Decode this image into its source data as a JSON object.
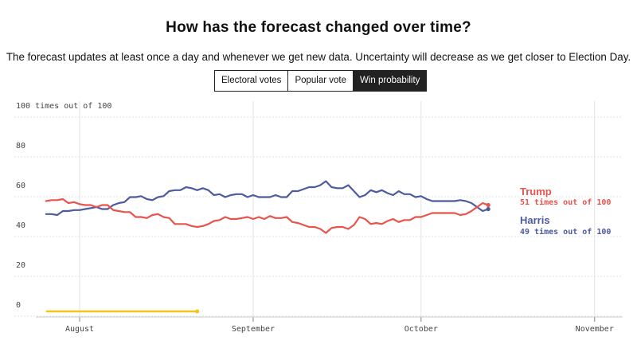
{
  "header": {
    "title": "How has the forecast changed over time?",
    "subtitle": "The forecast updates at least once a day and whenever we get new data. Uncertainty will decrease as we get closer to Election Day."
  },
  "tabs": [
    {
      "label": "Electoral votes",
      "active": false
    },
    {
      "label": "Popular vote",
      "active": false
    },
    {
      "label": "Win probability",
      "active": true
    }
  ],
  "colors": {
    "trump": "#e8534d",
    "harris": "#4d5a9e",
    "highlight": "#f5c518",
    "grid": "#e3e3e3",
    "axis_text": "#444444"
  },
  "chart_data": {
    "type": "line",
    "x_axis": {
      "ticks": [
        {
          "label": "August",
          "day": 0
        },
        {
          "label": "September",
          "day": 31
        },
        {
          "label": "October",
          "day": 61
        },
        {
          "label": "November",
          "day": 92
        }
      ]
    },
    "y_axis": {
      "ylim": [
        0,
        100
      ],
      "ticks": [
        {
          "value": 100,
          "label": "100 times out of 100"
        },
        {
          "value": 80,
          "label": "80"
        },
        {
          "value": 60,
          "label": "60"
        },
        {
          "value": 40,
          "label": "40"
        },
        {
          "value": 20,
          "label": "20"
        },
        {
          "value": 0,
          "label": "0"
        }
      ]
    },
    "grid": true,
    "series": [
      {
        "name": "Harris",
        "color_key": "harris",
        "end_label": "49 times out of 100",
        "start_day": -6,
        "values": [
          46.5,
          46.5,
          46,
          48,
          48,
          48.5,
          48.5,
          49,
          49.5,
          50,
          49,
          49,
          51,
          52,
          52.5,
          55,
          55,
          55.5,
          54,
          53.5,
          55,
          55.5,
          58,
          58.5,
          58.5,
          60,
          59.5,
          58.5,
          59.5,
          58.5,
          56,
          56.5,
          55,
          56,
          56.5,
          56.5,
          55,
          56,
          55,
          55,
          55,
          56,
          55,
          55,
          58,
          58,
          59,
          60,
          60,
          61,
          63,
          60,
          59.5,
          59.5,
          61,
          58,
          55,
          56,
          58.5,
          57.5,
          58.5,
          57,
          56,
          58,
          56.5,
          56.5,
          55,
          55.5,
          54,
          53,
          53,
          53,
          53,
          53,
          53.5,
          53,
          52,
          50,
          48,
          49
        ]
      },
      {
        "name": "Trump",
        "color_key": "trump",
        "end_label": "51 times out of 100",
        "start_day": -6,
        "values": [
          53,
          53.5,
          53.5,
          54,
          52,
          52.5,
          51.5,
          51,
          51,
          50,
          51,
          51,
          48.5,
          48,
          47.5,
          47.5,
          45,
          45,
          44.5,
          46,
          46.5,
          45,
          44.5,
          41.5,
          41.5,
          41.5,
          40.5,
          40,
          40.5,
          41.5,
          43,
          43.5,
          45,
          44,
          44,
          44.5,
          45,
          44,
          45,
          44,
          45.5,
          44.5,
          44.5,
          45,
          42.5,
          42,
          41,
          40,
          40,
          39,
          37,
          39.5,
          40,
          40,
          39,
          41,
          45,
          44,
          41.5,
          42,
          41.5,
          43,
          44,
          42.5,
          43.5,
          43.5,
          45,
          45,
          46,
          47,
          47,
          47,
          47,
          47,
          46,
          46.5,
          48,
          50,
          52,
          51
        ]
      }
    ],
    "highlight_segment": {
      "start_day": -6,
      "end_day": 21,
      "value": 0
    }
  }
}
